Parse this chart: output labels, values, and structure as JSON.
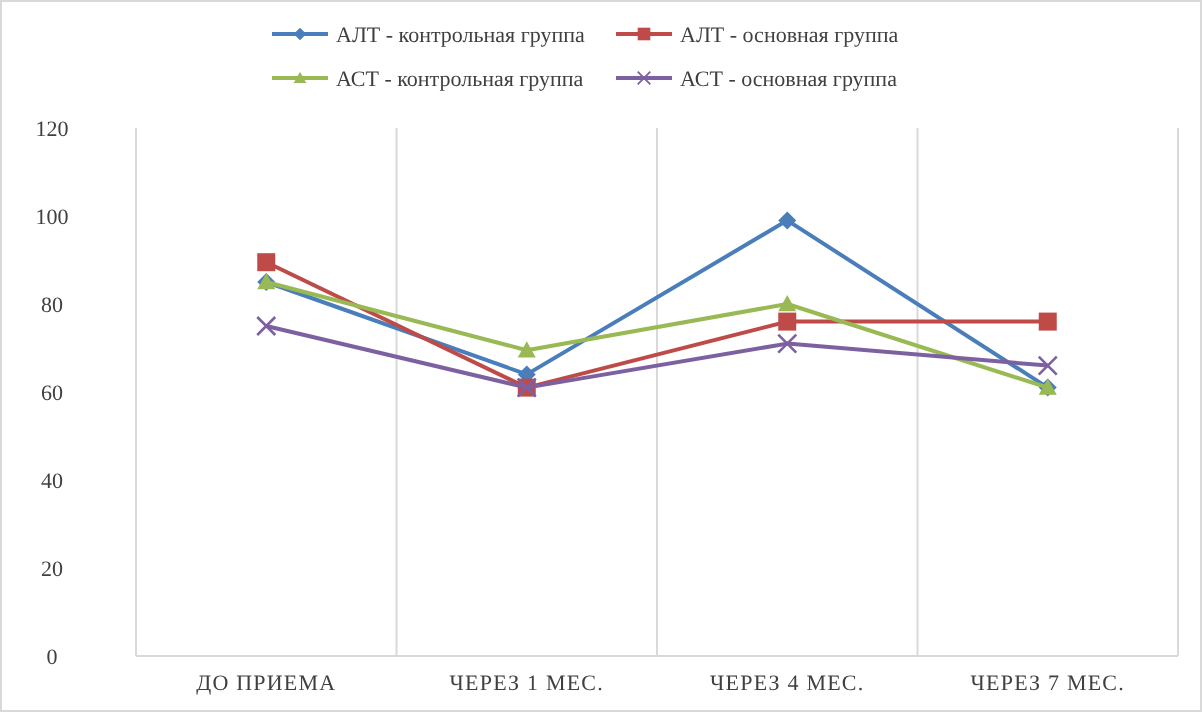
{
  "chart_data": {
    "type": "line",
    "categories": [
      "ДО ПРИЕМА",
      "ЧЕРЕЗ 1 МЕС.",
      "ЧЕРЕЗ 4 МЕС.",
      "ЧЕРЕЗ 7 МЕС."
    ],
    "series": [
      {
        "name": "АЛТ - контрольная группа",
        "color": "#4a7ebb",
        "marker": "diamond",
        "values": [
          85,
          64,
          99,
          61
        ]
      },
      {
        "name": "АЛТ - основная группа",
        "color": "#be4b48",
        "marker": "square",
        "values": [
          89.5,
          61,
          76,
          76
        ]
      },
      {
        "name": "АСТ - контрольная группа",
        "color": "#98b954",
        "marker": "triangle",
        "values": [
          85,
          69.5,
          80,
          61
        ]
      },
      {
        "name": "АСТ - основная группа",
        "color": "#7d60a0",
        "marker": "cross",
        "values": [
          75,
          61,
          71,
          66
        ]
      }
    ],
    "ylim": [
      0,
      120
    ],
    "yticks": [
      0,
      20,
      40,
      60,
      80,
      100,
      120
    ],
    "grid": "x",
    "legend": "top",
    "line_style": "solid"
  }
}
